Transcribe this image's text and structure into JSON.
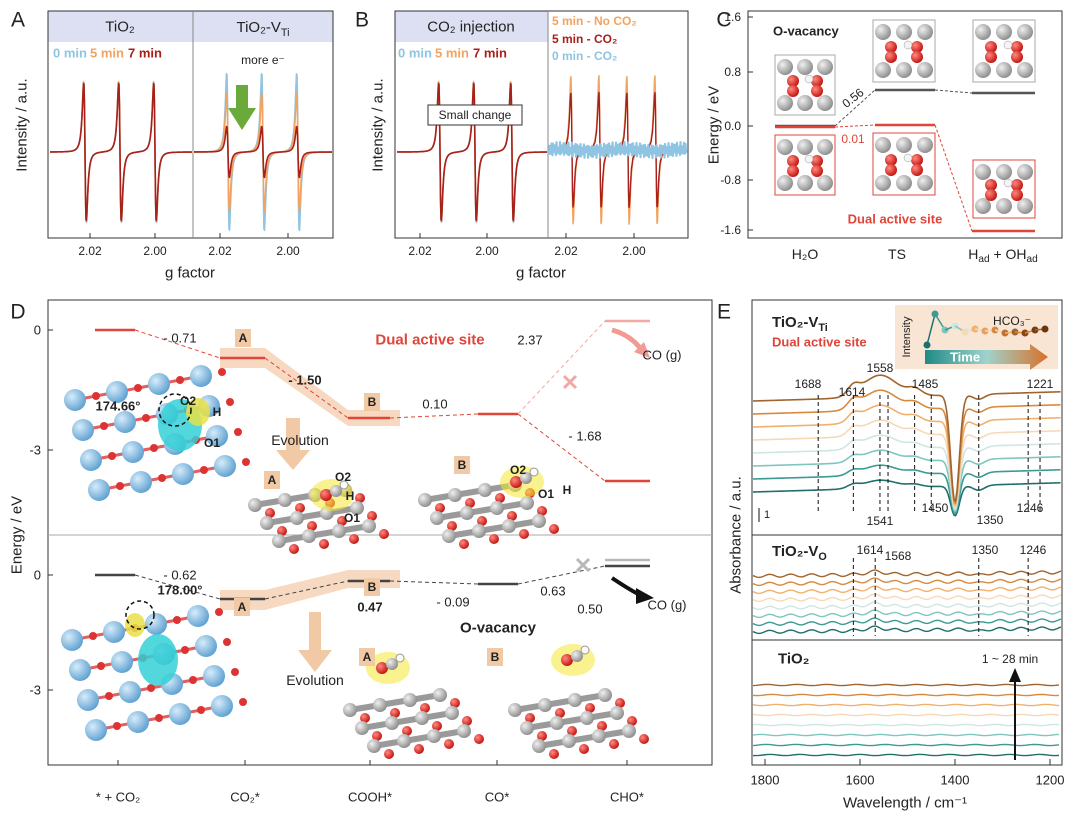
{
  "panel_labels": [
    "A",
    "B",
    "C",
    "D",
    "E"
  ],
  "A": {
    "headers": [
      "TiO₂",
      [
        "TiO₂-V",
        "Ti"
      ]
    ],
    "legend": [
      "0 min",
      "5 min",
      "7 min"
    ],
    "note": "more e⁻",
    "xticks": [
      "2.02",
      "2.00",
      "2.02",
      "2.00"
    ],
    "xlabel": "g factor",
    "ylabel": "Intensity / a.u."
  },
  "B": {
    "header": "CO₂ injection",
    "legend_left": [
      "0 min",
      "5 min",
      "7 min"
    ],
    "legend_right": [
      "5 min - No CO₂",
      "5 min - CO₂",
      "0 min - CO₂"
    ],
    "note": "Small change",
    "xticks": [
      "2.02",
      "2.00",
      "2.02",
      "2.00"
    ],
    "xlabel": "g factor",
    "ylabel": "Intensity / a.u."
  },
  "C": {
    "yticks": [
      "1.6",
      "0.8",
      "0.0",
      "-0.8",
      "-1.6"
    ],
    "ylabel": "Energy / eV",
    "top_label": "O-vacancy",
    "bottom_label": "Dual active site",
    "values": [
      "0.56",
      "0.01"
    ],
    "xlabels": [
      "H₂O",
      "TS",
      [
        "H",
        "ad",
        " + OH",
        "ad"
      ]
    ]
  },
  "D": {
    "ylabel": "Energy / eV",
    "yticks_top": [
      "0",
      "-3"
    ],
    "yticks_bottom": [
      "0",
      "-3"
    ],
    "xlabels": [
      "* + CO₂",
      "CO₂*",
      "COOH*",
      "CO*",
      "CHO*"
    ],
    "top": {
      "title": "Dual active site",
      "energies": [
        "- 0.71",
        "- 1.50",
        "0.10",
        "2.37",
        "- 1.68"
      ],
      "angle": "174.66°",
      "atoms": [
        "O2",
        "H",
        "O1"
      ],
      "evolution": "Evolution",
      "states": [
        "A",
        "B",
        "A",
        "B"
      ],
      "structure_atoms": [
        "O2",
        "H",
        "O1",
        "O2",
        "H",
        "O1"
      ],
      "product": "CO (g)"
    },
    "bottom": {
      "title": "O-vacancy",
      "energies": [
        "- 0.62",
        "0.47",
        "- 0.09",
        "0.63",
        "0.50"
      ],
      "angle": "178.00°",
      "evolution": "Evolution",
      "states": [
        "A",
        "B",
        "A",
        "B"
      ],
      "product": "CO (g)"
    }
  },
  "E": {
    "xticks": [
      "1800",
      "1600",
      "1400",
      "1200"
    ],
    "xlabel": "Wavelength / cm⁻¹",
    "ylabel": "Absorbance / a.u.",
    "top": {
      "title": [
        "TiO₂-V",
        "Ti"
      ],
      "subtitle": "Dual active site",
      "peaks_upper": [
        "1688",
        "1614",
        "1558",
        "1485",
        "1221"
      ],
      "peaks_lower": [
        "1541",
        "1450",
        "1350",
        "1246"
      ],
      "scale": "1",
      "inset": {
        "ylabel": "Intensity",
        "label": "HCO₃⁻",
        "arrow": "Time"
      }
    },
    "middle": {
      "title": [
        "TiO₂-V",
        "O"
      ],
      "peaks": [
        "1614",
        "1568",
        "1350",
        "1246"
      ]
    },
    "bottom": {
      "title": "TiO₂",
      "note": "1 ~ 28 min"
    }
  }
}
